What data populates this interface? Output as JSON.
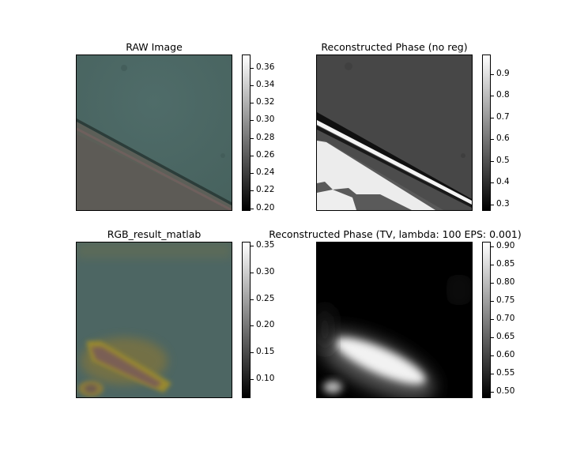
{
  "panels": [
    {
      "title": "RAW Image"
    },
    {
      "title": "Reconstructed Phase (no reg)"
    },
    {
      "title": "RGB_result_matlab"
    },
    {
      "title": "Reconstructed Phase (TV, lambda: 100 EPS: 0.001)"
    }
  ],
  "chart_data": [
    {
      "type": "heatmap",
      "title": "RAW Image",
      "xlabel": "",
      "ylabel": "",
      "colorbar": {
        "ticks": [
          "0.20",
          "0.22",
          "0.24",
          "0.26",
          "0.28",
          "0.30",
          "0.32",
          "0.34",
          "0.36"
        ],
        "range": [
          0.197,
          0.375
        ]
      }
    },
    {
      "type": "heatmap",
      "title": "Reconstructed Phase (no reg)",
      "xlabel": "",
      "ylabel": "",
      "colorbar": {
        "ticks": [
          "0.3",
          "0.4",
          "0.5",
          "0.6",
          "0.7",
          "0.8",
          "0.9"
        ],
        "range": [
          0.27,
          0.99
        ]
      }
    },
    {
      "type": "heatmap",
      "title": "RGB_result_matlab",
      "xlabel": "",
      "ylabel": "",
      "colorbar": {
        "ticks": [
          "0.10",
          "0.15",
          "0.20",
          "0.25",
          "0.30",
          "0.35"
        ],
        "range": [
          0.065,
          0.357
        ]
      }
    },
    {
      "type": "heatmap",
      "title": "Reconstructed Phase (TV, lambda: 100 EPS: 0.001)",
      "xlabel": "",
      "ylabel": "",
      "colorbar": {
        "ticks": [
          "0.50",
          "0.55",
          "0.60",
          "0.65",
          "0.70",
          "0.75",
          "0.80",
          "0.85",
          "0.90"
        ],
        "range": [
          0.483,
          0.913
        ]
      }
    }
  ]
}
